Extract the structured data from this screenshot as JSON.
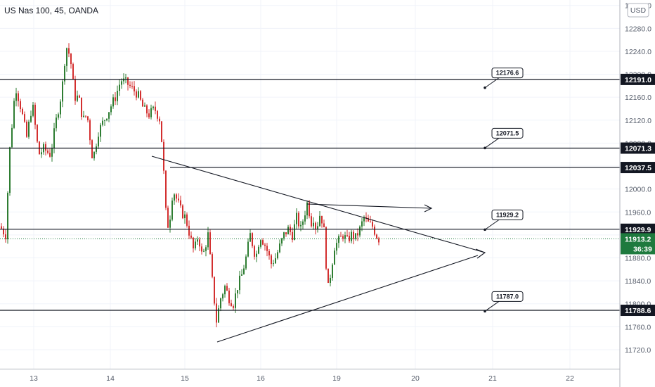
{
  "header": {
    "title": "US Nas 100, 45, OANDA",
    "currency": "USD"
  },
  "colors": {
    "up": "#26a69a",
    "down": "#ef5350",
    "up_candle": "#2e7d32",
    "down_candle": "#d32f2f",
    "line": "#131722",
    "last_price": "#1e7a3e"
  },
  "chart_data": {
    "type": "candlestick",
    "title": "US Nas 100, 45, OANDA",
    "y_ticks": [
      11720,
      11760,
      11800,
      11840,
      11880,
      11920,
      11960,
      12000,
      12040,
      12080,
      12120,
      12160,
      12200,
      12240,
      12280,
      12320
    ],
    "y_tick_labels": [
      "11720.0",
      "11760.0",
      "11800.0",
      "11840.0",
      "11880.0",
      "11920.0",
      "11960.0",
      "12000.0",
      "12040.0",
      "12080.0",
      "12120.0",
      "12160.0",
      "12200.0",
      "12240.0",
      "12280.0",
      "12320.0"
    ],
    "ylim": [
      11704,
      12327
    ],
    "x_tick_labels": [
      "13",
      "14",
      "15",
      "16",
      "19",
      "20",
      "21",
      "22"
    ],
    "horizontal_levels": [
      {
        "label": "12191.0",
        "value": 12191.0
      },
      {
        "label": "12071.3",
        "value": 12071.3
      },
      {
        "label": "12037.5",
        "value": 12037.5
      },
      {
        "label": "11929.9",
        "value": 11929.9
      },
      {
        "label": "11788.6",
        "value": 11788.6
      }
    ],
    "last_price": {
      "label": "11913.2",
      "value": 11913.2,
      "countdown": "36:39"
    },
    "callouts": [
      {
        "label": "12176.6",
        "value": 12176.6
      },
      {
        "label": "12071.5",
        "value": 12071.5
      },
      {
        "label": "11929.2",
        "value": 11929.2
      },
      {
        "label": "11787.0",
        "value": 11787.0
      }
    ],
    "candle_path": [
      [
        0,
        11935
      ],
      [
        8,
        11920
      ],
      [
        14,
        12070
      ],
      [
        22,
        12180
      ],
      [
        30,
        12140
      ],
      [
        38,
        12090
      ],
      [
        46,
        12150
      ],
      [
        55,
        12060
      ],
      [
        62,
        12070
      ],
      [
        72,
        12060
      ],
      [
        80,
        12120
      ],
      [
        88,
        12170
      ],
      [
        94,
        12250
      ],
      [
        100,
        12230
      ],
      [
        106,
        12160
      ],
      [
        112,
        12160
      ],
      [
        118,
        12120
      ],
      [
        124,
        12130
      ],
      [
        132,
        12050
      ],
      [
        140,
        12100
      ],
      [
        148,
        12120
      ],
      [
        156,
        12140
      ],
      [
        164,
        12160
      ],
      [
        172,
        12190
      ],
      [
        180,
        12185
      ],
      [
        188,
        12175
      ],
      [
        196,
        12165
      ],
      [
        204,
        12140
      ],
      [
        212,
        12130
      ],
      [
        220,
        12140
      ],
      [
        228,
        12120
      ],
      [
        232,
        12050
      ],
      [
        236,
        11960
      ],
      [
        240,
        11930
      ],
      [
        246,
        12000
      ],
      [
        252,
        11980
      ],
      [
        258,
        11960
      ],
      [
        264,
        11950
      ],
      [
        270,
        11920
      ],
      [
        276,
        11890
      ],
      [
        282,
        11920
      ],
      [
        288,
        11880
      ],
      [
        296,
        11920
      ],
      [
        302,
        11840
      ],
      [
        308,
        11770
      ],
      [
        314,
        11810
      ],
      [
        320,
        11830
      ],
      [
        326,
        11810
      ],
      [
        332,
        11800
      ],
      [
        338,
        11830
      ],
      [
        344,
        11850
      ],
      [
        350,
        11880
      ],
      [
        356,
        11920
      ],
      [
        364,
        11880
      ],
      [
        370,
        11920
      ],
      [
        378,
        11900
      ],
      [
        386,
        11870
      ],
      [
        392,
        11880
      ],
      [
        398,
        11900
      ],
      [
        404,
        11920
      ],
      [
        410,
        11930
      ],
      [
        416,
        11920
      ],
      [
        422,
        11950
      ],
      [
        428,
        11930
      ],
      [
        434,
        11960
      ],
      [
        438,
        11980
      ],
      [
        442,
        11940
      ],
      [
        446,
        11950
      ],
      [
        450,
        11930
      ],
      [
        456,
        11960
      ],
      [
        462,
        11920
      ],
      [
        466,
        11820
      ],
      [
        470,
        11850
      ],
      [
        476,
        11900
      ],
      [
        482,
        11910
      ],
      [
        488,
        11920
      ],
      [
        494,
        11910
      ],
      [
        500,
        11920
      ],
      [
        506,
        11915
      ],
      [
        512,
        11930
      ],
      [
        518,
        11950
      ],
      [
        524,
        11940
      ],
      [
        530,
        11935
      ],
      [
        538,
        11913
      ]
    ]
  }
}
